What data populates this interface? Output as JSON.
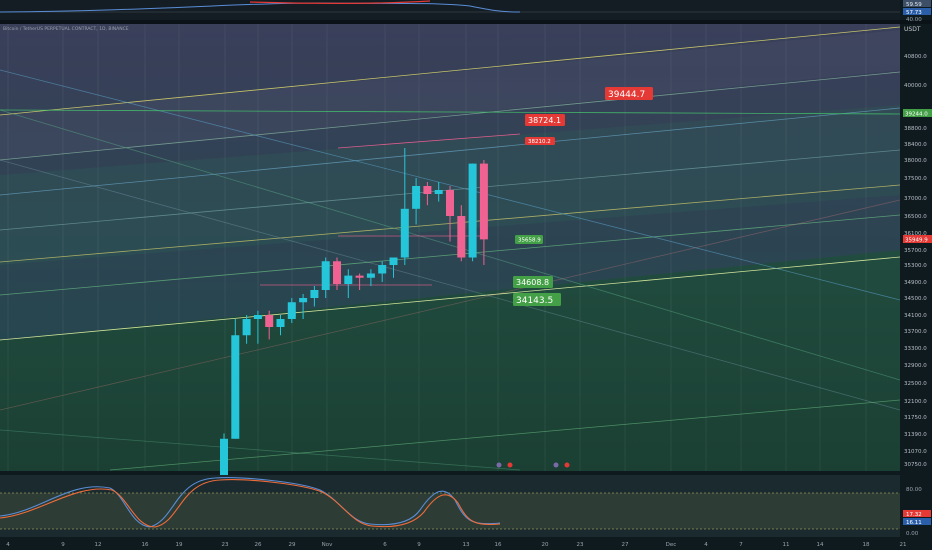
{
  "symbol_line": "Bitcoin / TetherUS PERPETUAL CONTRACT, 1D, BINANCE",
  "currency": "USDT",
  "top_panel_values": [
    "59.59",
    "57.73",
    "40.00"
  ],
  "bottom_panel_values": [
    "80.00",
    "17.32",
    "16.11",
    "0.00"
  ],
  "colors": {
    "up": "#26c6da",
    "down": "#f06292",
    "bg": "#0f1a1f",
    "green_label": "#43a047",
    "red_label": "#e53935"
  },
  "chart_data": {
    "type": "candlestick",
    "y_ticks": [
      40800,
      40000,
      39200,
      38800,
      38400,
      38000,
      37500,
      37000,
      36500,
      36100,
      35700,
      35300,
      34900,
      34500,
      34100,
      33700,
      33300,
      32900,
      32500,
      32100,
      31750,
      31390,
      31070,
      30750
    ],
    "y_tick_labels": [
      "40800.0",
      "40000.0",
      "39200.0",
      "38800.0",
      "38400.0",
      "38000.0",
      "37500.0",
      "37000.0",
      "36500.0",
      "36100.0",
      "35700.0",
      "35300.0",
      "34900.0",
      "34500.0",
      "34100.0",
      "33700.0",
      "33300.0",
      "32900.0",
      "32500.0",
      "32100.0",
      "31750.0",
      "31390.0",
      "31070.0",
      "30750.0"
    ],
    "current_price": "35949.9",
    "marked_level": "39244.0",
    "x_tick_labels": [
      "4",
      "9",
      "12",
      "16",
      "19",
      "23",
      "26",
      "29",
      "Nov",
      "6",
      "9",
      "13",
      "16",
      "20",
      "23",
      "27",
      "Dec",
      "4",
      "7",
      "11",
      "14",
      "18",
      "21"
    ],
    "candles": [
      {
        "o": 29800,
        "h": 31400,
        "l": 29700,
        "c": 31300
      },
      {
        "o": 31300,
        "h": 34000,
        "l": 31300,
        "c": 33600
      },
      {
        "o": 33600,
        "h": 34100,
        "l": 33400,
        "c": 34000
      },
      {
        "o": 34000,
        "h": 34200,
        "l": 33400,
        "c": 34100
      },
      {
        "o": 34100,
        "h": 34200,
        "l": 33500,
        "c": 33800
      },
      {
        "o": 33800,
        "h": 34100,
        "l": 33600,
        "c": 34000
      },
      {
        "o": 34000,
        "h": 34500,
        "l": 33900,
        "c": 34400
      },
      {
        "o": 34400,
        "h": 34600,
        "l": 34000,
        "c": 34500
      },
      {
        "o": 34500,
        "h": 34800,
        "l": 34300,
        "c": 34700
      },
      {
        "o": 34700,
        "h": 35500,
        "l": 34500,
        "c": 35400
      },
      {
        "o": 35400,
        "h": 35500,
        "l": 34700,
        "c": 34850
      },
      {
        "o": 34850,
        "h": 35200,
        "l": 34500,
        "c": 35050
      },
      {
        "o": 35050,
        "h": 35100,
        "l": 34700,
        "c": 35000
      },
      {
        "o": 35000,
        "h": 35200,
        "l": 34800,
        "c": 35100
      },
      {
        "o": 35100,
        "h": 35400,
        "l": 34900,
        "c": 35300
      },
      {
        "o": 35300,
        "h": 35500,
        "l": 35000,
        "c": 35500
      },
      {
        "o": 35500,
        "h": 38300,
        "l": 35300,
        "c": 36700
      },
      {
        "o": 36700,
        "h": 37500,
        "l": 36300,
        "c": 37300
      },
      {
        "o": 37300,
        "h": 37400,
        "l": 36800,
        "c": 37100
      },
      {
        "o": 37100,
        "h": 37400,
        "l": 36900,
        "c": 37200
      },
      {
        "o": 37200,
        "h": 37300,
        "l": 35900,
        "c": 36500
      },
      {
        "o": 36500,
        "h": 36800,
        "l": 35400,
        "c": 35500
      },
      {
        "o": 35500,
        "h": 37900,
        "l": 35400,
        "c": 37900
      },
      {
        "o": 37900,
        "h": 38000,
        "l": 35300,
        "c": 35950
      }
    ],
    "annotations": [
      {
        "text": "39444.7",
        "color": "red"
      },
      {
        "text": "38724.1",
        "color": "red"
      },
      {
        "text": "38210.2",
        "color": "red"
      },
      {
        "text": "35658.9",
        "color": "green"
      },
      {
        "text": "34608.8",
        "color": "green"
      },
      {
        "text": "34143.5",
        "color": "green"
      }
    ]
  }
}
